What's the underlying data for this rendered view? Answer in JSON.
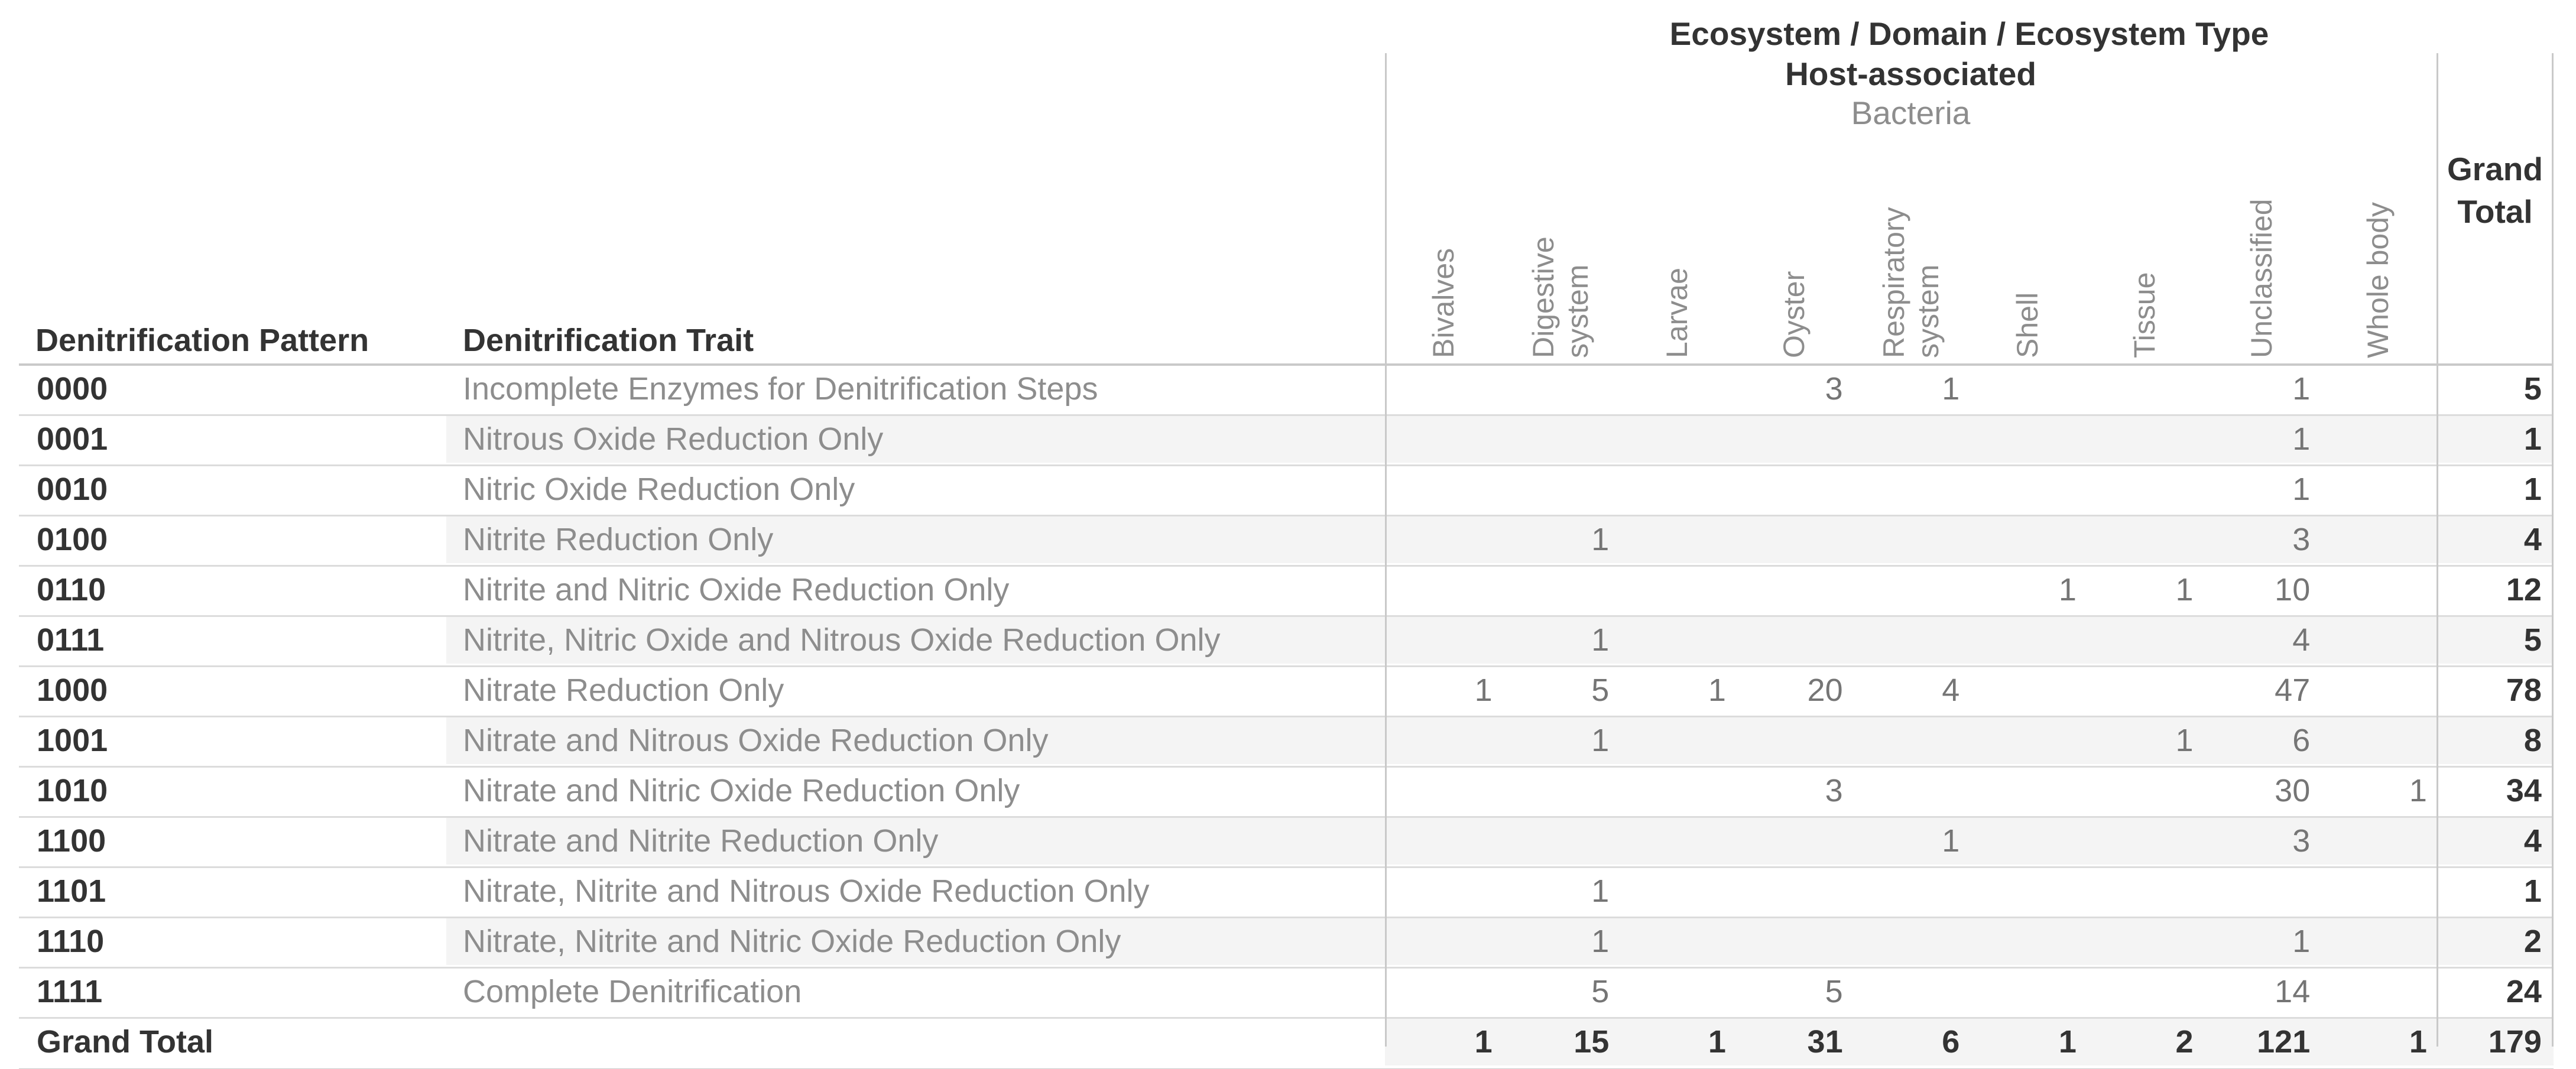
{
  "title": {
    "field_label": "Ecosystem / Domain / Ecosystem Type"
  },
  "column_headers": {
    "ecosystem": "Host-associated",
    "domain": "Bacteria",
    "ecosystem_types": [
      {
        "label": "Bivalves",
        "lines": [
          "Bivalves"
        ]
      },
      {
        "label": "Digestive system",
        "lines": [
          "Digestive",
          "system"
        ]
      },
      {
        "label": "Larvae",
        "lines": [
          "Larvae"
        ]
      },
      {
        "label": "Oyster",
        "lines": [
          "Oyster"
        ]
      },
      {
        "label": "Respiratory system",
        "lines": [
          "Respiratory",
          "system"
        ]
      },
      {
        "label": "Shell",
        "lines": [
          "Shell"
        ]
      },
      {
        "label": "Tissue",
        "lines": [
          "Tissue"
        ]
      },
      {
        "label": "Unclassified",
        "lines": [
          "Unclassified"
        ]
      },
      {
        "label": "Whole body",
        "lines": [
          "Whole body"
        ]
      }
    ],
    "grand_total": "Grand Total"
  },
  "row_headers": {
    "pattern": "Denitrification Pattern",
    "trait": "Denitrification Trait"
  },
  "rows": [
    {
      "pattern": "0000",
      "trait": "Incomplete Enzymes for Denitrification Steps",
      "values": [
        "",
        "",
        "",
        "3",
        "1",
        "",
        "",
        "1",
        ""
      ],
      "total": "5"
    },
    {
      "pattern": "0001",
      "trait": "Nitrous Oxide Reduction Only",
      "values": [
        "",
        "",
        "",
        "",
        "",
        "",
        "",
        "1",
        ""
      ],
      "total": "1"
    },
    {
      "pattern": "0010",
      "trait": "Nitric Oxide Reduction Only",
      "values": [
        "",
        "",
        "",
        "",
        "",
        "",
        "",
        "1",
        ""
      ],
      "total": "1"
    },
    {
      "pattern": "0100",
      "trait": "Nitrite Reduction Only",
      "values": [
        "",
        "1",
        "",
        "",
        "",
        "",
        "",
        "3",
        ""
      ],
      "total": "4"
    },
    {
      "pattern": "0110",
      "trait": "Nitrite and Nitric Oxide Reduction Only",
      "values": [
        "",
        "",
        "",
        "",
        "",
        "1",
        "1",
        "10",
        ""
      ],
      "total": "12"
    },
    {
      "pattern": "0111",
      "trait": "Nitrite, Nitric Oxide and Nitrous Oxide Reduction Only",
      "values": [
        "",
        "1",
        "",
        "",
        "",
        "",
        "",
        "4",
        ""
      ],
      "total": "5"
    },
    {
      "pattern": "1000",
      "trait": "Nitrate Reduction Only",
      "values": [
        "1",
        "5",
        "1",
        "20",
        "4",
        "",
        "",
        "47",
        ""
      ],
      "total": "78"
    },
    {
      "pattern": "1001",
      "trait": "Nitrate and Nitrous Oxide Reduction Only",
      "values": [
        "",
        "1",
        "",
        "",
        "",
        "",
        "1",
        "6",
        ""
      ],
      "total": "8"
    },
    {
      "pattern": "1010",
      "trait": "Nitrate and Nitric Oxide Reduction Only",
      "values": [
        "",
        "",
        "",
        "3",
        "",
        "",
        "",
        "30",
        "1"
      ],
      "total": "34"
    },
    {
      "pattern": "1100",
      "trait": "Nitrate and Nitrite Reduction Only",
      "values": [
        "",
        "",
        "",
        "",
        "1",
        "",
        "",
        "3",
        ""
      ],
      "total": "4"
    },
    {
      "pattern": "1101",
      "trait": "Nitrate, Nitrite and Nitrous Oxide Reduction Only",
      "values": [
        "",
        "1",
        "",
        "",
        "",
        "",
        "",
        "",
        ""
      ],
      "total": "1"
    },
    {
      "pattern": "1110",
      "trait": "Nitrate, Nitrite and Nitric Oxide Reduction Only",
      "values": [
        "",
        "1",
        "",
        "",
        "",
        "",
        "",
        "1",
        ""
      ],
      "total": "2"
    },
    {
      "pattern": "1111",
      "trait": "Complete Denitrification",
      "values": [
        "",
        "5",
        "",
        "5",
        "",
        "",
        "",
        "14",
        ""
      ],
      "total": "24"
    }
  ],
  "grand_total_row": {
    "label": "Grand Total",
    "values": [
      "1",
      "15",
      "1",
      "31",
      "6",
      "1",
      "2",
      "121",
      "1"
    ],
    "total": "179"
  },
  "colors": {
    "text_dark": "#333333",
    "text_muted": "#8d8d8d",
    "value_text": "#757575",
    "band": "#f4f4f4",
    "row_line": "#dcdcdc",
    "strong_line": "#c9c9c9",
    "vline": "#c9c9c9"
  }
}
